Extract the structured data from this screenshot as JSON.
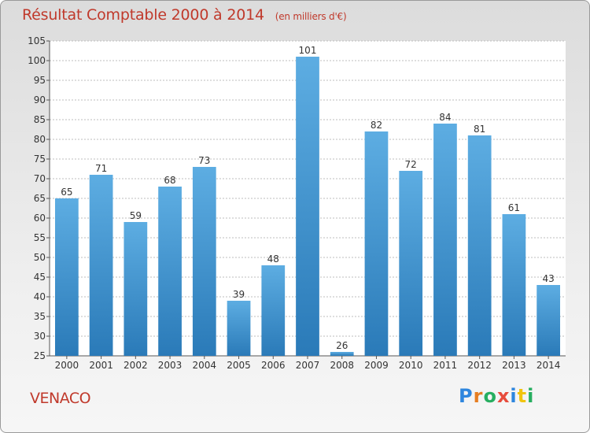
{
  "header": {
    "title": "Résultat Comptable 2000 à 2014",
    "subtitle": "(en milliers d'€)"
  },
  "footer": {
    "commune": "VENACO",
    "brand_letters": [
      "P",
      "r",
      "o",
      "x",
      "i",
      "t",
      "i"
    ],
    "brand_colors": [
      "#2e86de",
      "#e67e22",
      "#27ae60",
      "#e74c3c",
      "#2e86de",
      "#f1c40f",
      "#27ae60"
    ]
  },
  "colors": {
    "bar_top": "#5dade2",
    "bar_bottom": "#2a7ab8",
    "grid": "#bdbdbd",
    "title": "#c0392b"
  },
  "chart_data": {
    "type": "bar",
    "title": "Résultat Comptable 2000 à 2014",
    "subtitle": "(en milliers d'€)",
    "categories": [
      "2000",
      "2001",
      "2002",
      "2003",
      "2004",
      "2005",
      "2006",
      "2007",
      "2008",
      "2009",
      "2010",
      "2011",
      "2012",
      "2013",
      "2014"
    ],
    "values": [
      65,
      71,
      59,
      68,
      73,
      39,
      48,
      101,
      26,
      82,
      72,
      84,
      81,
      61,
      43
    ],
    "ylim": [
      25,
      105
    ],
    "yticks": [
      25,
      30,
      35,
      40,
      45,
      50,
      55,
      60,
      65,
      70,
      75,
      80,
      85,
      90,
      95,
      100,
      105
    ],
    "grid": true,
    "xlabel": "",
    "ylabel": ""
  }
}
